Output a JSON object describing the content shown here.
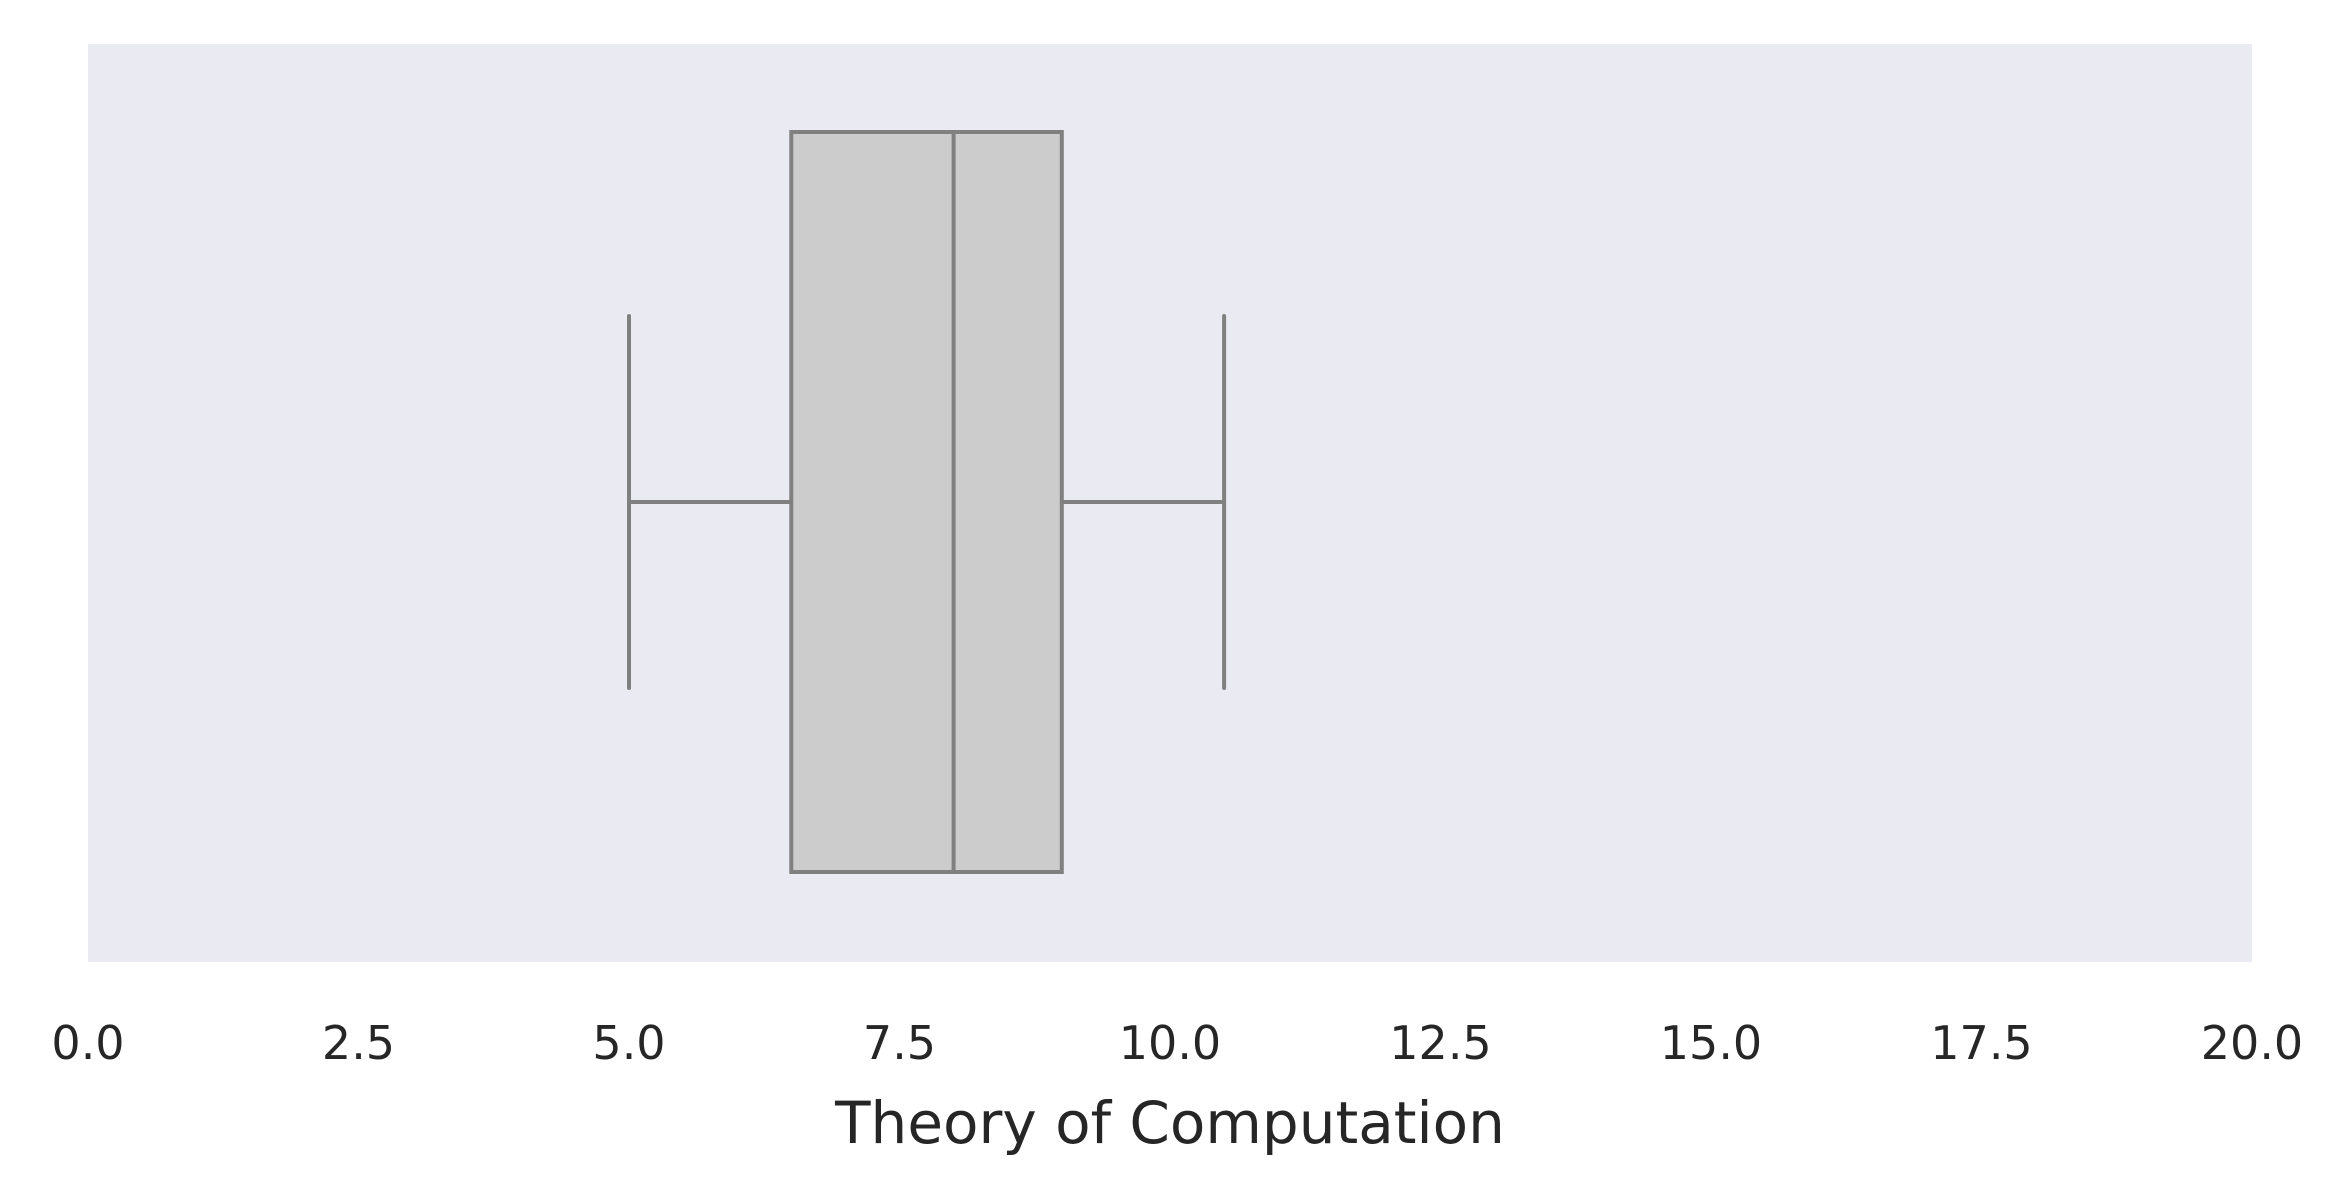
{
  "chart_data": {
    "type": "boxplot",
    "orientation": "horizontal",
    "xlabel": "Theory of Computation",
    "xlim": [
      0.0,
      20.0
    ],
    "xticks": [
      0.0,
      2.5,
      5.0,
      7.5,
      10.0,
      12.5,
      15.0,
      17.5,
      20.0
    ],
    "xtick_labels": [
      "0.0",
      "2.5",
      "5.0",
      "7.5",
      "10.0",
      "12.5",
      "15.0",
      "17.5",
      "20.0"
    ],
    "grid": false,
    "box": {
      "whisker_low": 5.0,
      "q1": 6.5,
      "median": 8.0,
      "q3": 9.0,
      "whisker_high": 10.5
    },
    "colors": {
      "plot_background": "#eaeaf2",
      "box_fill": "#cccccc",
      "line": "#808080",
      "text": "#262626"
    }
  }
}
